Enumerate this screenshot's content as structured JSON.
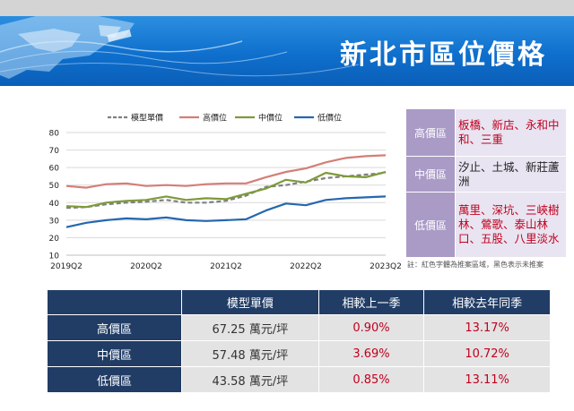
{
  "banner": {
    "title": "新北市區位價格"
  },
  "chart_data": {
    "type": "line",
    "x": [
      "2019Q2",
      "2019Q3",
      "2019Q4",
      "2020Q1",
      "2020Q2",
      "2020Q3",
      "2020Q4",
      "2021Q1",
      "2021Q2",
      "2021Q3",
      "2021Q4",
      "2022Q1",
      "2022Q2",
      "2022Q3",
      "2022Q4",
      "2023Q1",
      "2023Q2"
    ],
    "xticks": [
      "2019Q2",
      "2020Q2",
      "2021Q2",
      "2022Q2",
      "2023Q2"
    ],
    "ylim": [
      10,
      80
    ],
    "yticks": [
      10,
      20,
      30,
      40,
      50,
      60,
      70,
      80
    ],
    "grid": true,
    "legend_position": "top",
    "series": [
      {
        "name": "模型單價",
        "color": "#808080",
        "dash": true,
        "values": [
          37,
          37.5,
          39,
          40,
          40.5,
          41.5,
          40,
          40,
          41,
          44,
          49,
          50,
          52,
          54,
          55,
          56,
          57
        ]
      },
      {
        "name": "高價位",
        "color": "#d47e78",
        "dash": false,
        "values": [
          49.5,
          48.5,
          50.5,
          51,
          49.5,
          50,
          49.5,
          50.5,
          51,
          51,
          54.5,
          57.5,
          59.5,
          63,
          65.5,
          66.5,
          67
        ]
      },
      {
        "name": "中價位",
        "color": "#7e9a3a",
        "dash": false,
        "values": [
          38,
          37.5,
          40,
          41,
          41.5,
          43.5,
          41.5,
          42.5,
          42,
          45,
          48,
          53,
          51.5,
          57,
          55,
          54.5,
          57.5
        ]
      },
      {
        "name": "低價位",
        "color": "#2467b0",
        "dash": false,
        "values": [
          26,
          28.5,
          30,
          31,
          30.5,
          31.5,
          30,
          29.5,
          30,
          30.5,
          35.5,
          39.5,
          38.5,
          41.5,
          42.5,
          43,
          43.5
        ]
      }
    ]
  },
  "regions": {
    "high": {
      "label": "高價區",
      "text": "板橋、新店、永和中和、三重"
    },
    "mid": {
      "label": "中價區",
      "text": "汐止、土城、新莊蘆洲"
    },
    "low": {
      "label": "低價區",
      "text": "萬里、深坑、三峽樹林、鶯歌、泰山林口、五股、八里淡水"
    },
    "note": "註：紅色字體為推案區域，黑色表示未推案"
  },
  "stats": {
    "headers": [
      "",
      "模型單價",
      "相較上一季",
      "相較去年同季"
    ],
    "rows": [
      {
        "name": "高價區",
        "price": "67.25 萬元/坪",
        "qoq": "0.90%",
        "yoy": "13.17%"
      },
      {
        "name": "中價區",
        "price": "57.48 萬元/坪",
        "qoq": "3.69%",
        "yoy": "10.72%"
      },
      {
        "name": "低價區",
        "price": "43.58 萬元/坪",
        "qoq": "0.85%",
        "yoy": "13.11%"
      }
    ]
  }
}
